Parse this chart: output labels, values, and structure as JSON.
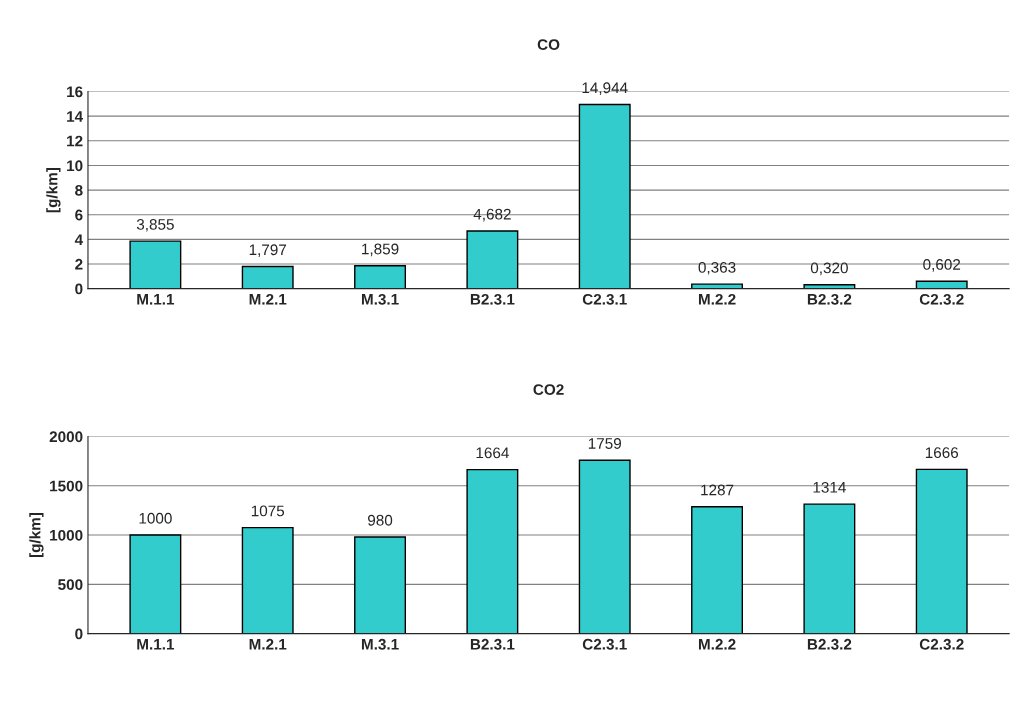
{
  "chart_data": [
    {
      "type": "bar",
      "title": "CO",
      "ylabel": "[g/km]",
      "categories": [
        "M.1.1",
        "M.2.1",
        "M.3.1",
        "B2.3.1",
        "C2.3.1",
        "M.2.2",
        "B2.3.2",
        "C2.3.2"
      ],
      "values": [
        3.855,
        1.797,
        1.859,
        4.682,
        14.944,
        0.363,
        0.32,
        0.602
      ],
      "value_labels": [
        "3,855",
        "1,797",
        "1,859",
        "4,682",
        "14,944",
        "0,363",
        "0,320",
        "0,602"
      ],
      "color": "#33cccc",
      "ylim": [
        0,
        16
      ],
      "yticks": [
        0,
        2,
        4,
        6,
        8,
        10,
        12,
        14,
        16
      ],
      "grid": "y",
      "legend": false
    },
    {
      "type": "bar",
      "title": "CO2",
      "ylabel": "[g/km]",
      "categories": [
        "M.1.1",
        "M.2.1",
        "M.3.1",
        "B2.3.1",
        "C2.3.1",
        "M.2.2",
        "B2.3.2",
        "C2.3.2"
      ],
      "values": [
        1000,
        1075,
        980,
        1664,
        1759,
        1287,
        1314,
        1666
      ],
      "data_labels": true,
      "color": "#33cccc",
      "ylim": [
        0,
        2000
      ],
      "yticks": [
        0,
        500,
        1000,
        1500,
        2000
      ],
      "grid": "y",
      "legend": false
    }
  ]
}
